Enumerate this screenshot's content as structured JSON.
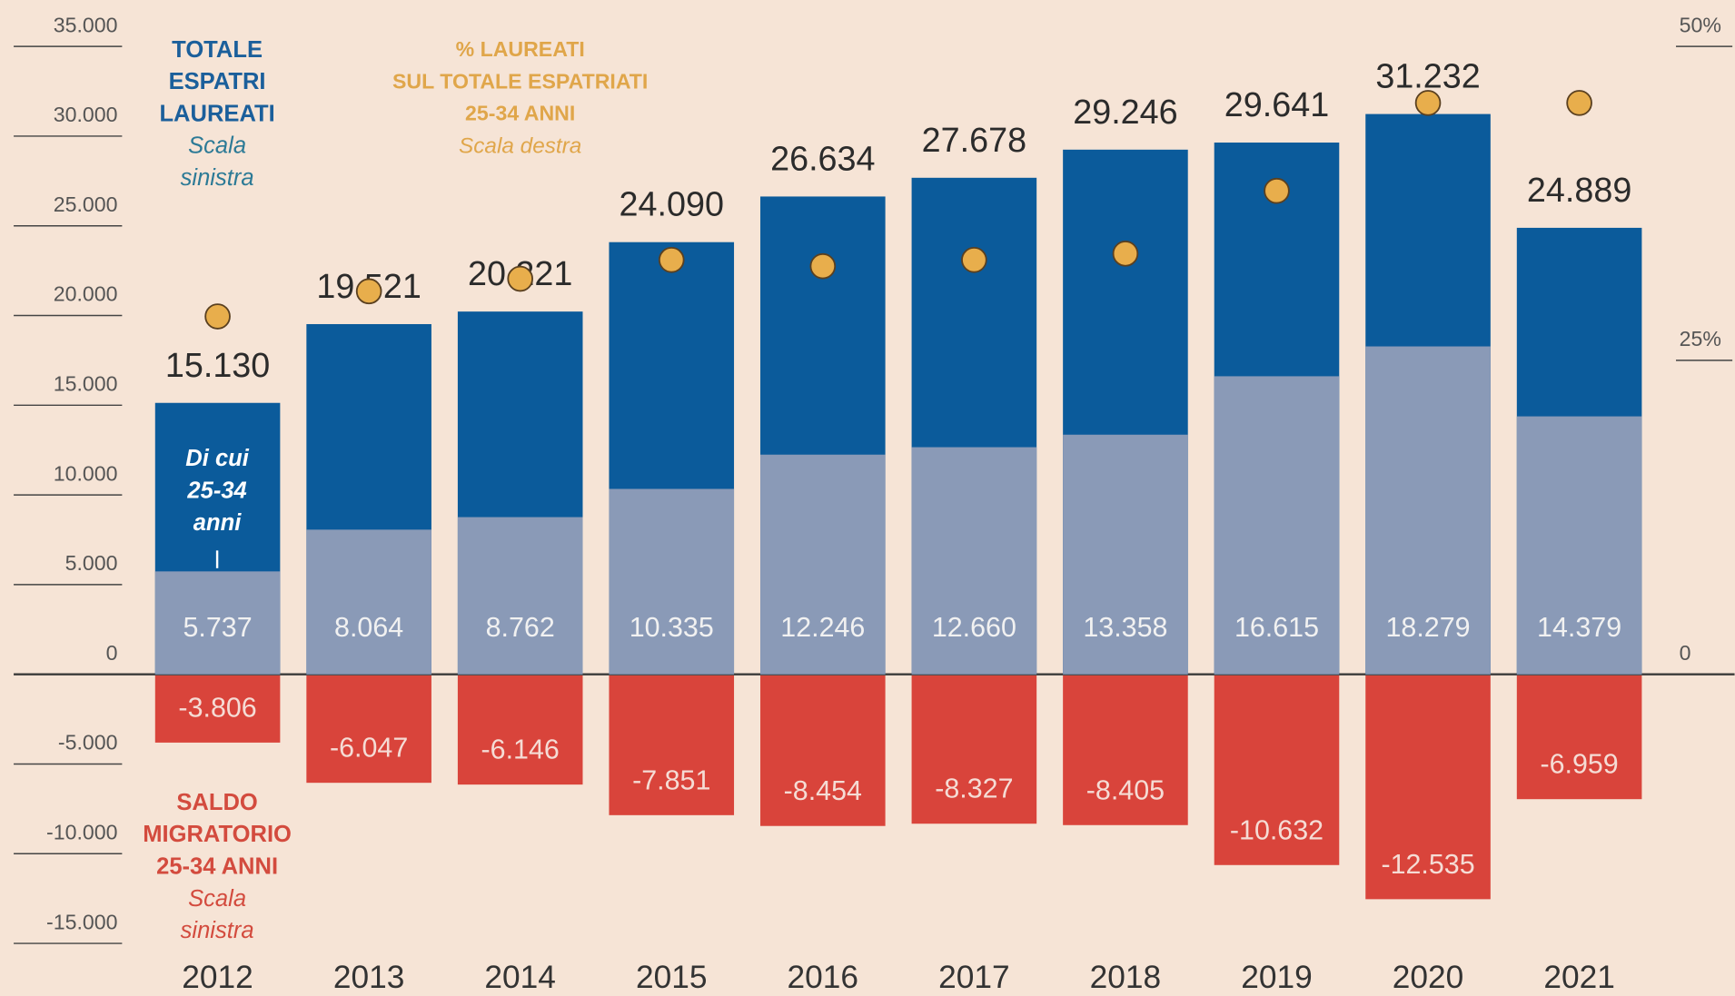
{
  "chart_data": {
    "type": "bar",
    "categories": [
      "2012",
      "2013",
      "2014",
      "2015",
      "2016",
      "2017",
      "2018",
      "2019",
      "2020",
      "2021"
    ],
    "series": [
      {
        "color": "#0b5b9b",
        "values": [
          15130,
          19521,
          20221,
          24090,
          26634,
          27678,
          29246,
          29641,
          31232,
          24889
        ],
        "value_labels": [
          "15.130",
          "19.521",
          "20.221",
          "24.090",
          "26.634",
          "27.678",
          "29.246",
          "29.641",
          "31.232",
          "24.889"
        ]
      },
      {
        "color": "#8a9ab7",
        "values": [
          5737,
          8064,
          8762,
          10335,
          12246,
          12660,
          13358,
          16615,
          18279,
          14379
        ],
        "value_labels": [
          "5.737",
          "8.064",
          "8.762",
          "10.335",
          "12.246",
          "12.660",
          "13.358",
          "16.615",
          "18.279",
          "14.379"
        ]
      },
      {
        "color": "#d9443b",
        "values": [
          -3806,
          -6047,
          -6146,
          -7851,
          -8454,
          -8327,
          -8405,
          -10632,
          -12535,
          -6959
        ],
        "value_labels": [
          "-3.806",
          "-6.047",
          "-6.146",
          "-7.851",
          "-8.454",
          "-8.327",
          "-8.405",
          "-10.632",
          "-12.535",
          "-6.959"
        ]
      },
      {
        "color": "#e8ae4c",
        "axis": "y2",
        "values": [
          28.5,
          30.5,
          31.5,
          33,
          32.5,
          33,
          33.5,
          38.5,
          45.5,
          45.5
        ]
      }
    ],
    "ylim": [
      -17000,
      35000
    ],
    "yticks": [
      {
        "value": 35000,
        "label": "35.000"
      },
      {
        "value": 30000,
        "label": "30.000"
      },
      {
        "value": 25000,
        "label": "25.000"
      },
      {
        "value": 20000,
        "label": "20.000"
      },
      {
        "value": 15000,
        "label": "15.000"
      },
      {
        "value": 10000,
        "label": "10.000"
      },
      {
        "value": 5000,
        "label": "5.000"
      },
      0,
      {
        "value": -5000,
        "label": "-5.000"
      },
      {
        "value": -10000,
        "label": "-10.000"
      },
      {
        "value": -15000,
        "label": "-15.000"
      }
    ],
    "y2lim": [
      -24.2857,
      50
    ],
    "y2ticks": [
      {
        "value": 50,
        "label": "50%"
      },
      {
        "value": 25,
        "label": "25%"
      },
      0
    ],
    "annotations": {
      "total": [
        "TOTALE",
        "ESPATRI",
        "LAUREATI"
      ],
      "total_scale": [
        "Scala",
        "sinistra"
      ],
      "percent": [
        "% LAUREATI",
        "SUL TOTALE ESPATRIATI",
        "25-34 ANNI"
      ],
      "percent_scale": [
        "Scala destra"
      ],
      "subset": [
        "Di cui",
        "25-34",
        "anni"
      ],
      "balance": [
        "SALDO",
        "MIGRATORIO",
        "25-34 ANNI"
      ],
      "balance_scale": [
        "Scala",
        "sinistra"
      ]
    }
  }
}
